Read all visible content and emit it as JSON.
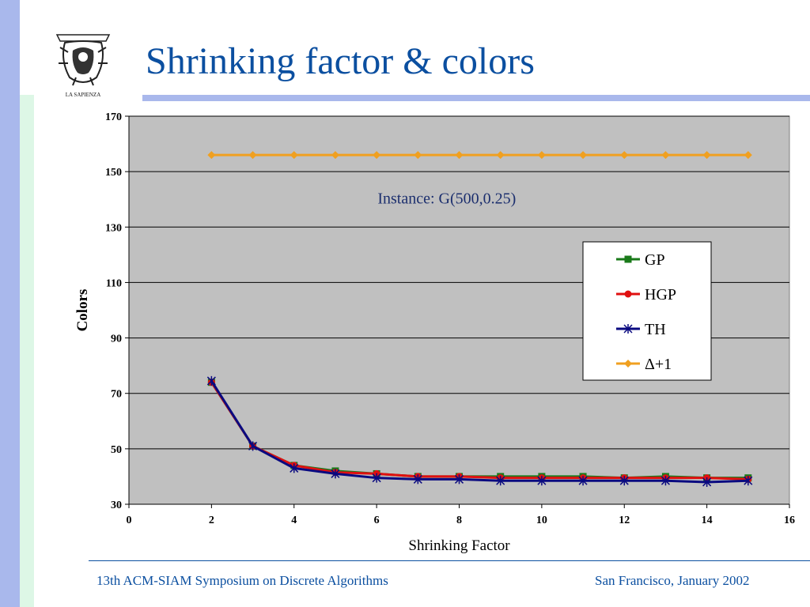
{
  "slide": {
    "title": "Shrinking factor & colors",
    "logo_text": "LA SAPIENZA",
    "footer_left": "13th ACM-SIAM Symposium on Discrete Algorithms",
    "footer_right": "San Francisco, January 2002"
  },
  "chart_data": {
    "type": "line",
    "xlabel": "Shrinking Factor",
    "ylabel": "Colors",
    "annotation": "Instance: G(500,0.25)",
    "xlim": [
      0,
      16
    ],
    "ylim": [
      30,
      170
    ],
    "xticks": [
      0,
      2,
      4,
      6,
      8,
      10,
      12,
      14,
      16
    ],
    "yticks": [
      30,
      50,
      70,
      90,
      110,
      130,
      150,
      170
    ],
    "grid": true,
    "legend_position": "right",
    "x": [
      2,
      3,
      4,
      5,
      6,
      7,
      8,
      9,
      10,
      11,
      12,
      13,
      14,
      15
    ],
    "series": [
      {
        "name": "GP",
        "color": "#1a7a1a",
        "marker": "square",
        "values": [
          74,
          51,
          44,
          42,
          41,
          40,
          40,
          40,
          40,
          40,
          39.5,
          40,
          39.5,
          39.5
        ]
      },
      {
        "name": "HGP",
        "color": "#e01010",
        "marker": "circle",
        "values": [
          74,
          51,
          44,
          41.5,
          41,
          40,
          40,
          39.5,
          39.5,
          39.5,
          39.5,
          39.5,
          39.5,
          39
        ]
      },
      {
        "name": "TH",
        "color": "#0a0a80",
        "marker": "star",
        "values": [
          74.5,
          51,
          43,
          41,
          39.5,
          39,
          39,
          38.5,
          38.5,
          38.5,
          38.5,
          38.5,
          38,
          38.5
        ]
      },
      {
        "name": "Δ+1",
        "color": "#f0a020",
        "marker": "diamond",
        "values": [
          156,
          156,
          156,
          156,
          156,
          156,
          156,
          156,
          156,
          156,
          156,
          156,
          156,
          156
        ]
      }
    ]
  }
}
